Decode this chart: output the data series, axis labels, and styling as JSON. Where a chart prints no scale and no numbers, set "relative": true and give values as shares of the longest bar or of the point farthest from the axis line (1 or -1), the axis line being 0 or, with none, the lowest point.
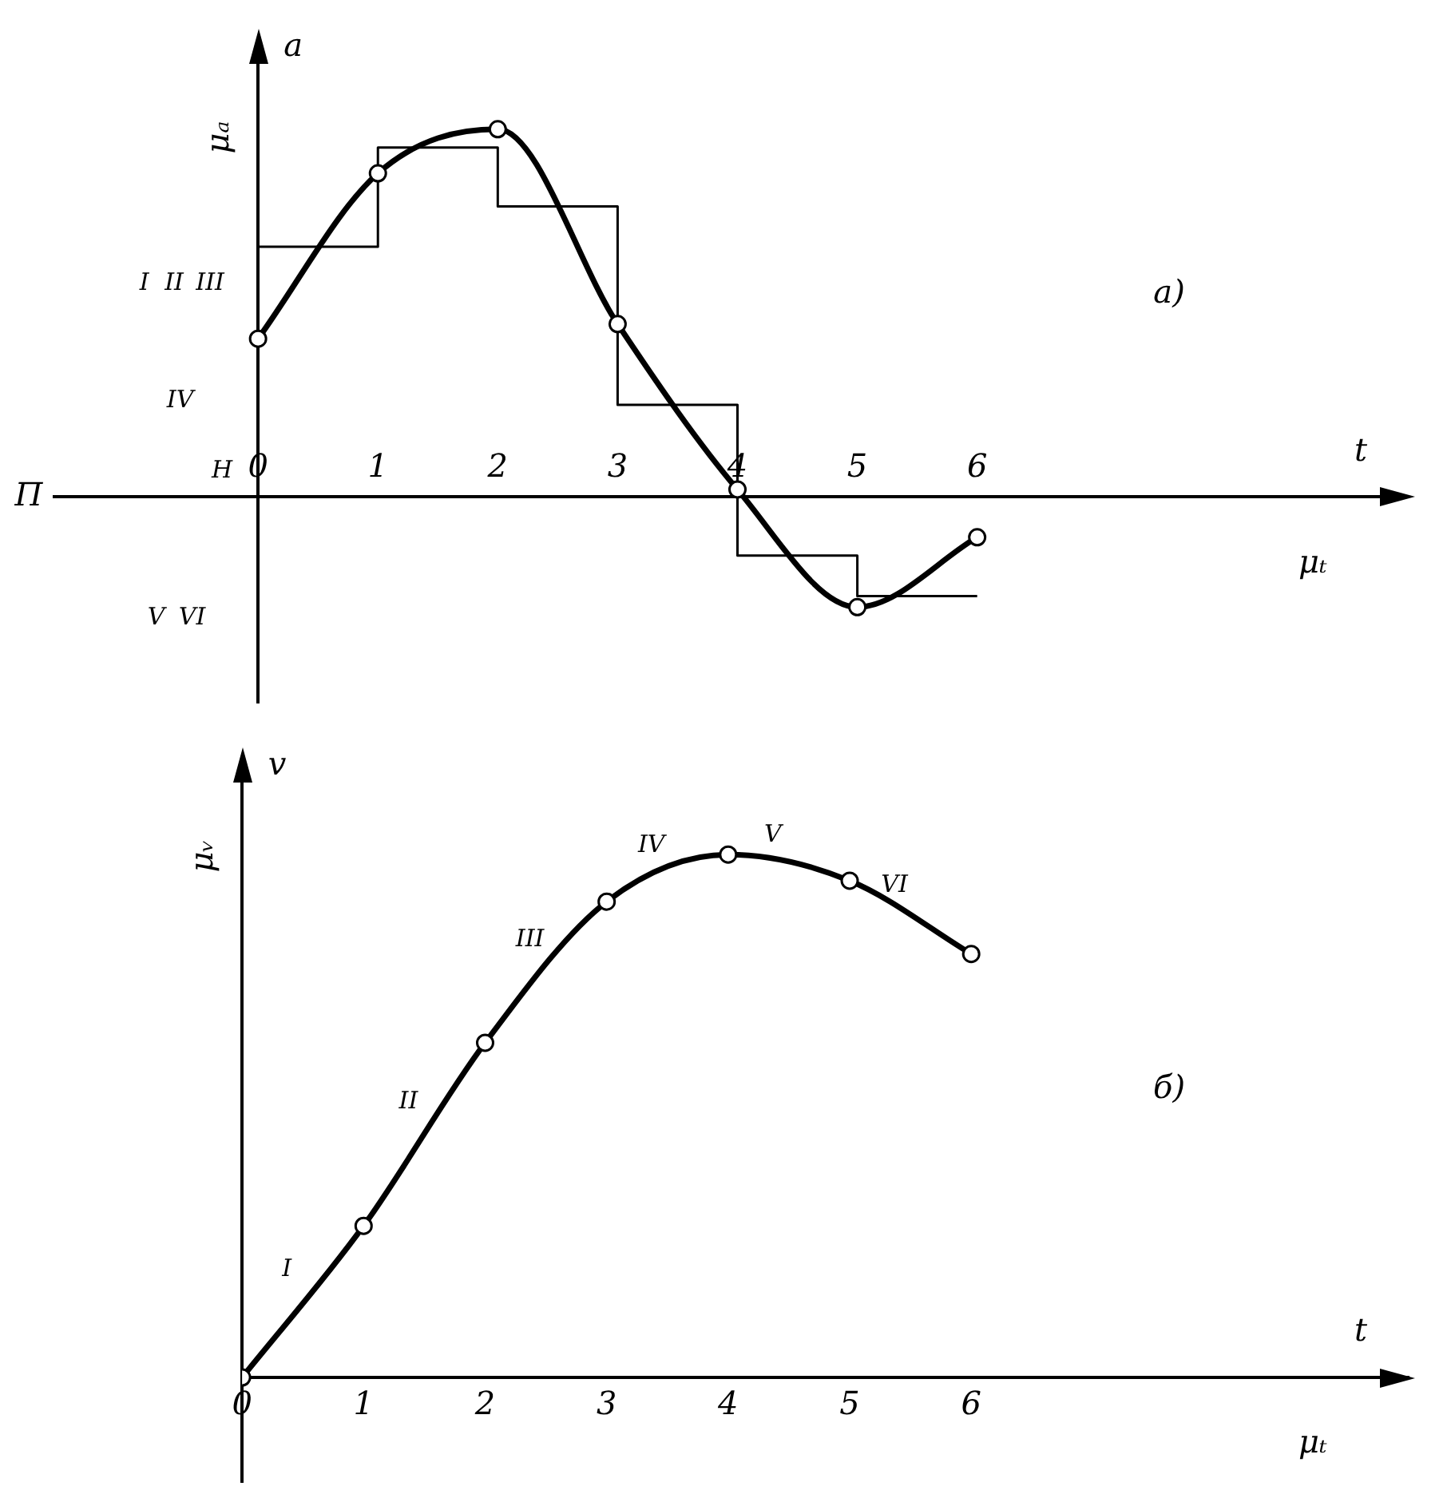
{
  "chart_data": [
    {
      "type": "line",
      "relative": true,
      "xlabel": "t",
      "ylabel": "μₐ",
      "xlim": [
        -1.7,
        9.6
      ],
      "xticks": [
        0,
        1,
        2,
        3,
        4,
        5,
        6
      ],
      "legend": false,
      "marker": "circle",
      "series": [
        {
          "color": "#000000",
          "x": [
            0,
            1,
            2,
            3,
            4,
            5,
            6
          ],
          "values": [
            0.43,
            0.88,
            1,
            0.47,
            0.02,
            -0.3,
            -0.11
          ]
        },
        {
          "type": "step",
          "marker": "none",
          "color": "#000000",
          "x": [
            0,
            1,
            2,
            3,
            4,
            5,
            6
          ],
          "values": [
            0.68,
            0.95,
            0.79,
            0.25,
            -0.16,
            -0.27,
            -0.27
          ]
        }
      ],
      "annotations": [
        "a",
        "μₜ",
        "a)",
        "I",
        "II",
        "III",
        "IV",
        "H",
        "V",
        "VI",
        "П"
      ]
    },
    {
      "type": "line",
      "relative": true,
      "xlabel": "t",
      "ylabel": "μᵥ",
      "xlim": [
        0,
        9.6
      ],
      "xticks": [
        0,
        1,
        2,
        3,
        4,
        5,
        6
      ],
      "legend": false,
      "marker": "circle",
      "series": [
        {
          "color": "#000000",
          "x": [
            0,
            1,
            2,
            3,
            4,
            5,
            6
          ],
          "values": [
            0,
            0.29,
            0.64,
            0.91,
            1,
            0.95,
            0.81
          ]
        }
      ],
      "annotations": [
        "v",
        "μₜ",
        "б)",
        "I",
        "II",
        "III",
        "IV",
        "V",
        "VI"
      ]
    }
  ]
}
